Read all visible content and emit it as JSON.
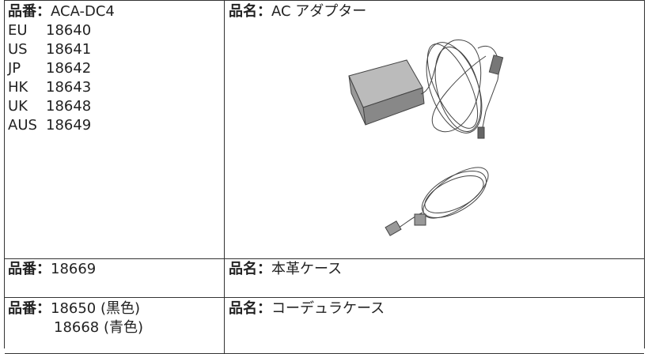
{
  "table": {
    "rows": [
      {
        "part": {
          "label": "品番：",
          "value": "ACA-DC4",
          "variants": [
            [
              "EU",
              "18640"
            ],
            [
              "US",
              "18641"
            ],
            [
              "JP",
              "18642"
            ],
            [
              "HK",
              "18643"
            ],
            [
              "UK",
              "18648"
            ],
            [
              "AUS",
              "18649"
            ]
          ]
        },
        "name": {
          "label": "品名：",
          "value": "AC アダプター"
        }
      },
      {
        "part": {
          "label": "品番：",
          "value": "18669"
        },
        "name": {
          "label": "品名：",
          "value": "本革ケース"
        }
      },
      {
        "part": {
          "label": "品番：",
          "values": [
            "18650 (黒色)",
            "18668 (青色)"
          ]
        },
        "name": {
          "label": "品名：",
          "value": "コーデュラケース"
        }
      }
    ]
  }
}
